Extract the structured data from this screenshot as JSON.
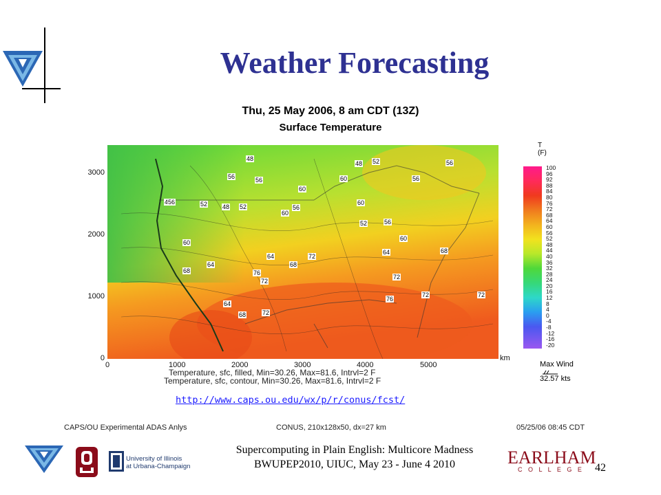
{
  "slide": {
    "title": "Weather Forecasting",
    "page_number": "42",
    "footer_line1": "Supercomputing in Plain English: Multicore Madness",
    "footer_line2": "BWUPEP2010, UIUC, May 23 - June 4 2010",
    "url": "http://www.caps.ou.edu/wx/p/r/conus/fcst/"
  },
  "map": {
    "header1": "Thu, 25 May 2006, 8 am CDT (13Z)",
    "header2": "Surface Temperature",
    "y_ticks": [
      "3000",
      "2000",
      "1000",
      "0"
    ],
    "x_ticks": [
      "0",
      "1000",
      "2000",
      "3000",
      "4000",
      "5000"
    ],
    "x_unit": "km",
    "caption1": "Temperature, sfc, filled, Min=30.26, Max=81.6, Intrvl=2 F",
    "caption2": "Temperature, sfc, contour, Min=30.26, Max=81.6, Intrvl=2 F",
    "bottom_left": "CAPS/OU Experimental ADAS Anlys",
    "bottom_center": "CONUS, 210x128x50, dx=27 km",
    "bottom_right": "05/25/06 08:45 CDT",
    "legend_title1": "T",
    "legend_title2": "(F)",
    "legend_values": [
      "100",
      "96",
      "92",
      "88",
      "84",
      "80",
      "76",
      "72",
      "68",
      "64",
      "60",
      "56",
      "52",
      "48",
      "44",
      "40",
      "36",
      "32",
      "28",
      "24",
      "20",
      "16",
      "12",
      "8",
      "4",
      "0",
      "-4",
      "-8",
      "-12",
      "-16",
      "-20"
    ],
    "max_wind_label": "Max Wind",
    "max_wind_value": "32.57 kts",
    "contour_labels": [
      "48",
      "48",
      "52",
      "56",
      "56",
      "60",
      "52",
      "44",
      "48",
      "52",
      "56",
      "60",
      "56",
      "56",
      "60",
      "52",
      "56",
      "60",
      "64",
      "72",
      "68",
      "64",
      "60",
      "68",
      "72",
      "64",
      "68",
      "72",
      "76",
      "72",
      "72",
      "72",
      "76",
      "68",
      "64",
      "56",
      "60"
    ]
  },
  "logos": {
    "illinois_line1": "University of Illinois",
    "illinois_line2": "at Urbana-Champaign",
    "earlham_word": "EARLHAM",
    "earlham_sub": "C O L L E G E"
  }
}
